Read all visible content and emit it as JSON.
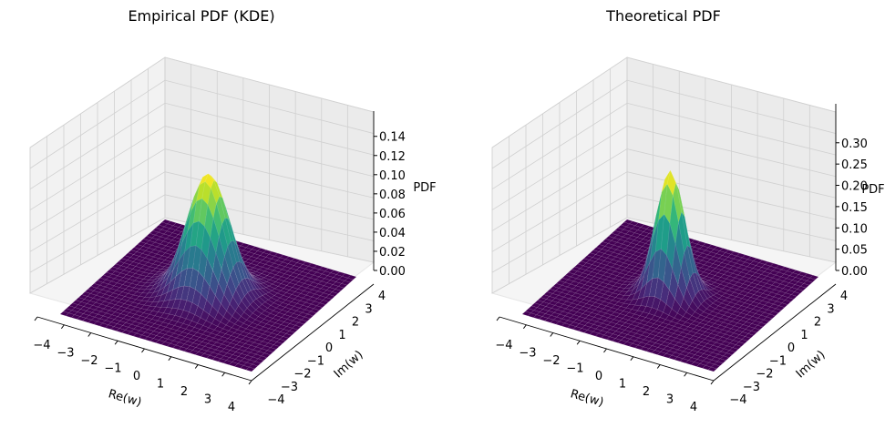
{
  "chart_data": [
    {
      "type": "surface",
      "title": "Empirical PDF (KDE)",
      "xlabel": "Re(w)",
      "ylabel": "Im(w)",
      "zlabel": "PDF",
      "xlim": [
        -4,
        4
      ],
      "ylim": [
        -4,
        4
      ],
      "zlim": [
        0,
        0.15
      ],
      "xticks": [
        "−4",
        "−3",
        "−2",
        "−1",
        "0",
        "1",
        "2",
        "3",
        "4"
      ],
      "yticks": [
        "−4",
        "−3",
        "−2",
        "−1",
        "0",
        "1",
        "2",
        "3",
        "4"
      ],
      "zticks": [
        "0.00",
        "0.02",
        "0.04",
        "0.06",
        "0.08",
        "0.10",
        "0.12",
        "0.14"
      ],
      "peak": 0.134,
      "sigma": 0.8,
      "colormap": "viridis",
      "grid": true
    },
    {
      "type": "surface",
      "title": "Theoretical PDF",
      "xlabel": "Re(w)",
      "ylabel": "Im(w)",
      "zlabel": "PDF",
      "xlim": [
        -4,
        4
      ],
      "ylim": [
        -4,
        4
      ],
      "zlim": [
        0,
        0.32
      ],
      "xticks": [
        "−4",
        "−3",
        "−2",
        "−1",
        "0",
        "1",
        "2",
        "3",
        "4"
      ],
      "yticks": [
        "−4",
        "−3",
        "−2",
        "−1",
        "0",
        "1",
        "2",
        "3",
        "4"
      ],
      "zticks": [
        "0.00",
        "0.05",
        "0.10",
        "0.15",
        "0.20",
        "0.25",
        "0.30"
      ],
      "peak": 0.28,
      "sigma": 0.55,
      "colormap": "viridis",
      "grid": true
    }
  ]
}
